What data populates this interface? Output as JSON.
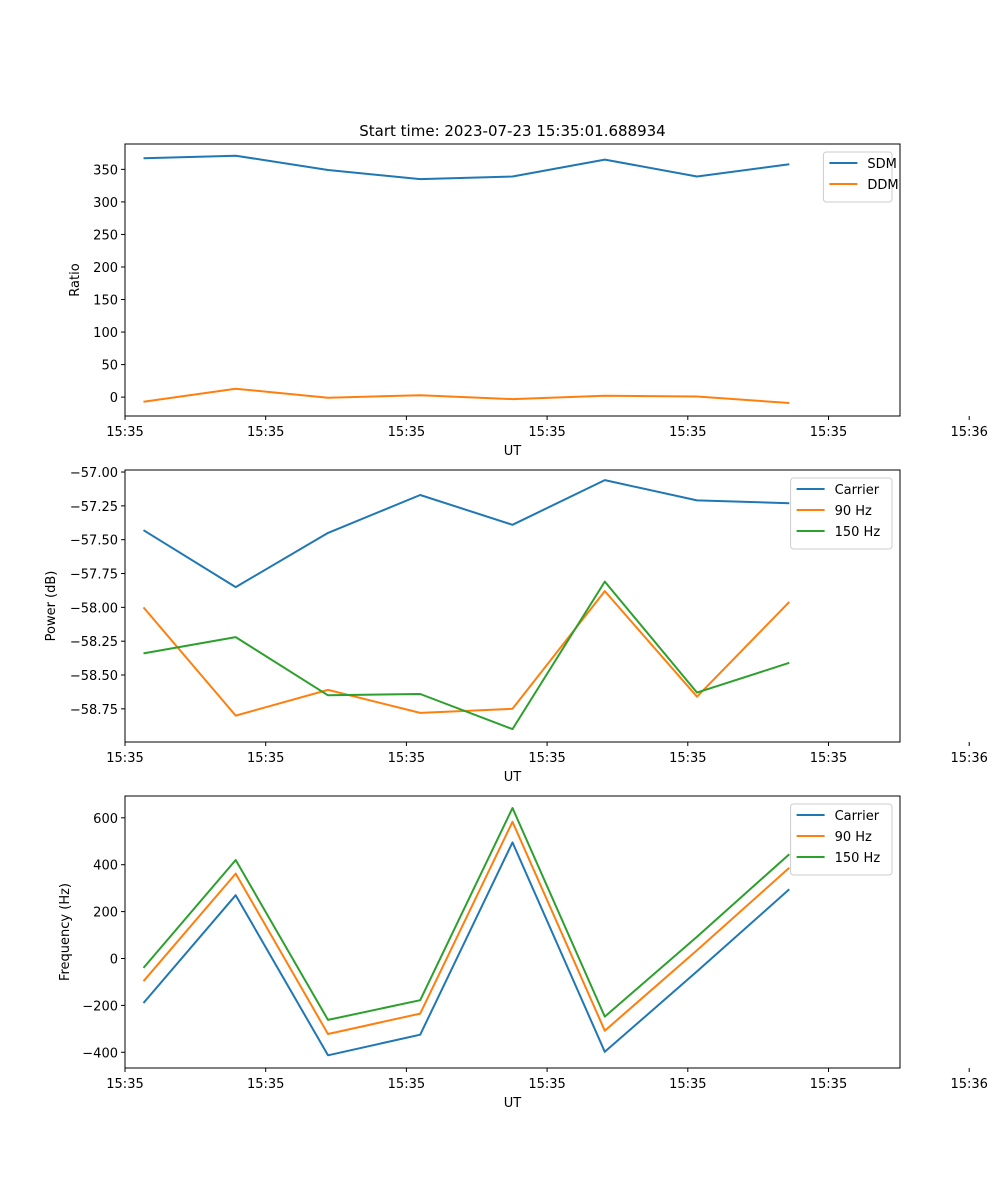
{
  "chart_data": [
    {
      "type": "line",
      "title": "Start time: 2023-07-23 15:35:01.688934",
      "xlabel": "UT",
      "ylabel": "Ratio",
      "x": [
        1,
        2,
        3,
        4,
        5,
        6,
        7,
        8
      ],
      "xlim": [
        0.8,
        9.2
      ],
      "x_ticks": [
        {
          "value": 0.8,
          "label": "15:35"
        },
        {
          "value": 2.325,
          "label": "15:35"
        },
        {
          "value": 3.85,
          "label": "15:35"
        },
        {
          "value": 5.375,
          "label": "15:35"
        },
        {
          "value": 6.9,
          "label": "15:35"
        },
        {
          "value": 8.425,
          "label": "15:35"
        },
        {
          "value": 9.95,
          "label": "15:36"
        }
      ],
      "ylim": [
        -29,
        389
      ],
      "y_ticks": [
        {
          "value": 0,
          "label": "0"
        },
        {
          "value": 50,
          "label": "50"
        },
        {
          "value": 100,
          "label": "100"
        },
        {
          "value": 150,
          "label": "150"
        },
        {
          "value": 200,
          "label": "200"
        },
        {
          "value": 250,
          "label": "250"
        },
        {
          "value": 300,
          "label": "300"
        },
        {
          "value": 350,
          "label": "350"
        }
      ],
      "legend_position": "top-right",
      "series": [
        {
          "name": "SDM",
          "color": "#1f77b4",
          "values": [
            367,
            371,
            349,
            335,
            339,
            365,
            339,
            358
          ]
        },
        {
          "name": "DDM",
          "color": "#ff7f0e",
          "values": [
            -7,
            13,
            -1,
            3,
            -3,
            2,
            1,
            -9
          ]
        }
      ]
    },
    {
      "type": "line",
      "title": "",
      "xlabel": "UT",
      "ylabel": "Power (dB)",
      "x": [
        1,
        2,
        3,
        4,
        5,
        6,
        7,
        8
      ],
      "xlim": [
        0.8,
        9.2
      ],
      "x_ticks": [
        {
          "value": 0.8,
          "label": "15:35"
        },
        {
          "value": 2.325,
          "label": "15:35"
        },
        {
          "value": 3.85,
          "label": "15:35"
        },
        {
          "value": 5.375,
          "label": "15:35"
        },
        {
          "value": 6.9,
          "label": "15:35"
        },
        {
          "value": 8.425,
          "label": "15:35"
        },
        {
          "value": 9.95,
          "label": "15:36"
        }
      ],
      "ylim": [
        -58.995,
        -56.985
      ],
      "y_ticks": [
        {
          "value": -58.75,
          "label": "−58.75"
        },
        {
          "value": -58.5,
          "label": "−58.50"
        },
        {
          "value": -58.25,
          "label": "−58.25"
        },
        {
          "value": -58.0,
          "label": "−58.00"
        },
        {
          "value": -57.75,
          "label": "−57.75"
        },
        {
          "value": -57.5,
          "label": "−57.50"
        },
        {
          "value": -57.25,
          "label": "−57.25"
        },
        {
          "value": -57.0,
          "label": "−57.00"
        }
      ],
      "legend_position": "top-right",
      "series": [
        {
          "name": "Carrier",
          "color": "#1f77b4",
          "values": [
            -57.43,
            -57.85,
            -57.45,
            -57.17,
            -57.39,
            -57.06,
            -57.21,
            -57.23
          ]
        },
        {
          "name": "90 Hz",
          "color": "#ff7f0e",
          "values": [
            -58.0,
            -58.8,
            -58.61,
            -58.78,
            -58.75,
            -57.88,
            -58.66,
            -57.96
          ]
        },
        {
          "name": "150 Hz",
          "color": "#2ca02c",
          "values": [
            -58.34,
            -58.22,
            -58.65,
            -58.64,
            -58.9,
            -57.81,
            -58.63,
            -58.41
          ]
        }
      ]
    },
    {
      "type": "line",
      "title": "",
      "xlabel": "UT",
      "ylabel": "Frequency (Hz)",
      "x": [
        1,
        2,
        3,
        4,
        5,
        6,
        7,
        8
      ],
      "xlim": [
        0.8,
        9.2
      ],
      "x_ticks": [
        {
          "value": 0.8,
          "label": "15:35"
        },
        {
          "value": 2.325,
          "label": "15:35"
        },
        {
          "value": 3.85,
          "label": "15:35"
        },
        {
          "value": 5.375,
          "label": "15:35"
        },
        {
          "value": 6.9,
          "label": "15:35"
        },
        {
          "value": 8.425,
          "label": "15:35"
        },
        {
          "value": 9.95,
          "label": "15:36"
        }
      ],
      "ylim": [
        -467,
        693
      ],
      "y_ticks": [
        {
          "value": -400,
          "label": "−400"
        },
        {
          "value": -200,
          "label": "−200"
        },
        {
          "value": 0,
          "label": "0"
        },
        {
          "value": 200,
          "label": "200"
        },
        {
          "value": 400,
          "label": "400"
        },
        {
          "value": 600,
          "label": "600"
        }
      ],
      "legend_position": "top-right",
      "series": [
        {
          "name": "Carrier",
          "color": "#1f77b4",
          "values": [
            -190,
            270,
            -413,
            -325,
            495,
            -398,
            -55,
            295
          ]
        },
        {
          "name": "90 Hz",
          "color": "#ff7f0e",
          "values": [
            -97,
            362,
            -322,
            -235,
            583,
            -308,
            35,
            387
          ]
        },
        {
          "name": "150 Hz",
          "color": "#2ca02c",
          "values": [
            -40,
            420,
            -262,
            -178,
            642,
            -248,
            93,
            445
          ]
        }
      ]
    }
  ]
}
